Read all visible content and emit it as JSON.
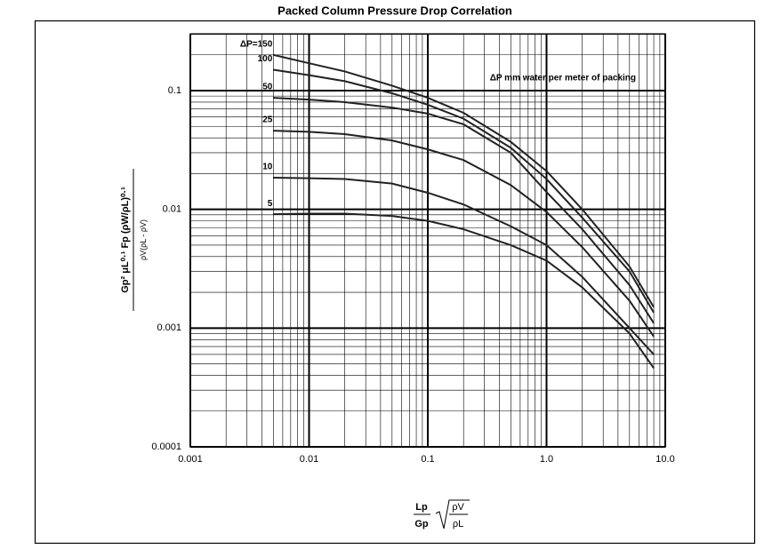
{
  "chart_data": {
    "type": "line",
    "title": "Packed Column Pressure Drop Correlation",
    "annotation": "ΔP mm water per meter of packing",
    "y_label": {
      "numerator": "Gp² μL⁰·¹ Fp (ρW/ρL)⁰·¹",
      "denominator": "ρV(ρL - ρV)"
    },
    "x_label": {
      "fraction_top": "Lp",
      "fraction_bottom": "Gp",
      "root_top": "ρV",
      "root_bottom": "ρL"
    },
    "log_x": true,
    "log_y": true,
    "grid": true,
    "xlim": [
      0.001,
      10
    ],
    "ylim": [
      0.0001,
      0.3
    ],
    "xticks": [
      0.001,
      0.01,
      0.1,
      {
        "value": 1,
        "label": "1.0"
      },
      {
        "value": 10,
        "label": "10.0"
      }
    ],
    "yticks": [
      0.0001,
      0.001,
      0.01,
      0.1
    ],
    "x": [
      0.005,
      0.01,
      0.02,
      0.05,
      0.1,
      0.2,
      0.5,
      1,
      2,
      5,
      8
    ],
    "series": [
      {
        "name": "ΔP=150",
        "color": "#222222",
        "values": [
          0.2,
          0.17,
          0.145,
          0.11,
          0.087,
          0.065,
          0.037,
          0.021,
          0.01,
          0.0033,
          0.0015
        ]
      },
      {
        "name": "100",
        "color": "#222222",
        "values": [
          0.15,
          0.135,
          0.12,
          0.095,
          0.076,
          0.058,
          0.033,
          0.018,
          0.0085,
          0.003,
          0.00135
        ]
      },
      {
        "name": "50",
        "color": "#222222",
        "values": [
          0.087,
          0.084,
          0.08,
          0.072,
          0.064,
          0.052,
          0.03,
          0.014,
          0.0068,
          0.0023,
          0.0011
        ]
      },
      {
        "name": "25",
        "color": "#222222",
        "values": [
          0.046,
          0.045,
          0.043,
          0.038,
          0.032,
          0.026,
          0.016,
          0.0095,
          0.0048,
          0.0017,
          0.00085
        ]
      },
      {
        "name": "10",
        "color": "#222222",
        "values": [
          0.0185,
          0.0183,
          0.018,
          0.0165,
          0.0138,
          0.011,
          0.0072,
          0.005,
          0.0027,
          0.001,
          0.0006
        ]
      },
      {
        "name": "5",
        "color": "#222222",
        "values": [
          0.0091,
          0.0092,
          0.0092,
          0.0088,
          0.008,
          0.0068,
          0.005,
          0.0037,
          0.0022,
          0.0009,
          0.00046
        ]
      }
    ]
  }
}
